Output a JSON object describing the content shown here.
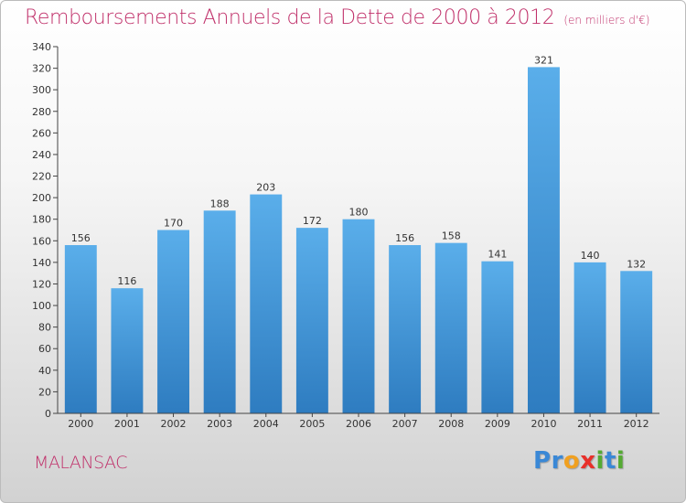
{
  "title": "Remboursements Annuels de la Dette de 2000 à 2012",
  "subtitle": "(en milliers d'€)",
  "place": "MALANSAC",
  "logo": {
    "letters": [
      "P",
      "r",
      "o",
      "x",
      "i",
      "t",
      "i"
    ],
    "colors": [
      "#3a88d6",
      "#3a88d6",
      "#f0a020",
      "#e8302a",
      "#55aa33",
      "#3a88d6",
      "#55aa33"
    ]
  },
  "colors": {
    "bar_light": "#5aaeea",
    "bar_dark": "#2e7cc0",
    "title": "#c0306a",
    "axis": "#444444"
  },
  "chart_data": {
    "type": "bar",
    "categories": [
      "2000",
      "2001",
      "2002",
      "2003",
      "2004",
      "2005",
      "2006",
      "2007",
      "2008",
      "2009",
      "2010",
      "2011",
      "2012"
    ],
    "values": [
      156,
      116,
      170,
      188,
      203,
      172,
      180,
      156,
      158,
      141,
      321,
      140,
      132
    ],
    "ylim": [
      0,
      340
    ],
    "yticks": [
      0,
      20,
      40,
      60,
      80,
      100,
      120,
      140,
      160,
      180,
      200,
      220,
      240,
      260,
      280,
      300,
      320,
      340
    ],
    "grid": false,
    "data_labels": true
  }
}
